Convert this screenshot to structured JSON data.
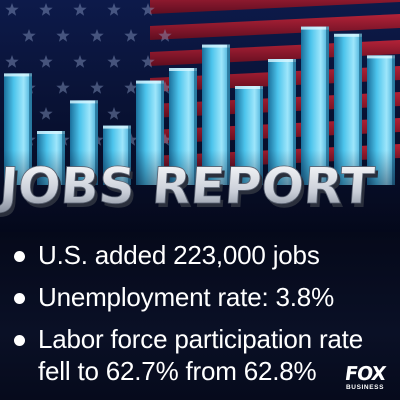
{
  "headline": "JOBS REPORT",
  "bars": [
    0.62,
    0.3,
    0.47,
    0.33,
    0.58,
    0.65,
    0.78,
    0.55,
    0.7,
    0.88,
    0.84,
    0.72
  ],
  "colors": {
    "bar": "#3fb9e3",
    "bar_light": "#9ee6fb",
    "bar_dark": "#1b6f9b",
    "flag_red": "#b0152a",
    "navy": "#0b1440",
    "text": "#ffffff"
  },
  "bullets": [
    {
      "text": "U.S. added 223,000 jobs"
    },
    {
      "text": "Unemployment rate: 3.8%"
    },
    {
      "text": "Labor force participation rate",
      "continuation": "fell to 62.7% from 62.8%"
    }
  ],
  "logo": {
    "top": "FOX",
    "bottom": "BUSINESS"
  }
}
